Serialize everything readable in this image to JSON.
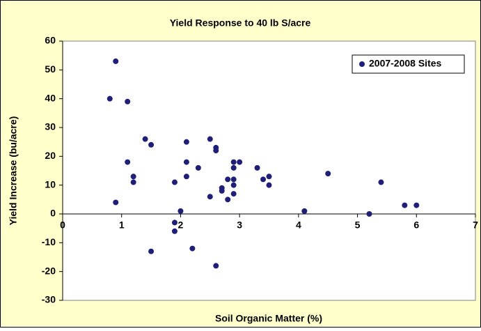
{
  "chart_data": {
    "type": "scatter",
    "title": "Yield Response to 40 lb S/acre",
    "x_label": "Soil Organic Matter (%)",
    "y_label": "Yield Increase (bu/acre)",
    "series": [
      {
        "name": "2007-2008 Sites",
        "color": "#1f1f78",
        "x": [
          0.8,
          0.9,
          1.1,
          1.1,
          1.2,
          1.2,
          1.4,
          1.5,
          0.9,
          1.5,
          1.9,
          1.9,
          1.9,
          2.0,
          2.1,
          2.1,
          2.1,
          2.2,
          2.3,
          2.5,
          2.5,
          2.6,
          2.6,
          2.6,
          2.7,
          2.7,
          2.8,
          2.8,
          2.9,
          2.9,
          2.9,
          2.9,
          2.9,
          3.0,
          3.3,
          3.4,
          3.5,
          3.5,
          4.5,
          4.1,
          5.2,
          5.4,
          5.8,
          6.0
        ],
        "values": [
          40,
          53,
          39,
          18,
          13,
          11,
          26,
          24,
          4,
          -13,
          11,
          -3,
          -6,
          1,
          25,
          18,
          13,
          -12,
          16,
          26,
          6,
          23,
          22,
          -18,
          9,
          8,
          12,
          5,
          18,
          16,
          12,
          10,
          7,
          18,
          16,
          12,
          13,
          10,
          14,
          1,
          0,
          11,
          3,
          3
        ]
      }
    ],
    "xlim": [
      0,
      7
    ],
    "xticks": [
      0,
      1,
      2,
      3,
      4,
      5,
      6,
      7
    ],
    "ylim": [
      -30,
      60
    ],
    "yticks": [
      -30,
      -20,
      -10,
      0,
      10,
      20,
      30,
      40,
      50,
      60
    ],
    "legend": "top-right"
  }
}
